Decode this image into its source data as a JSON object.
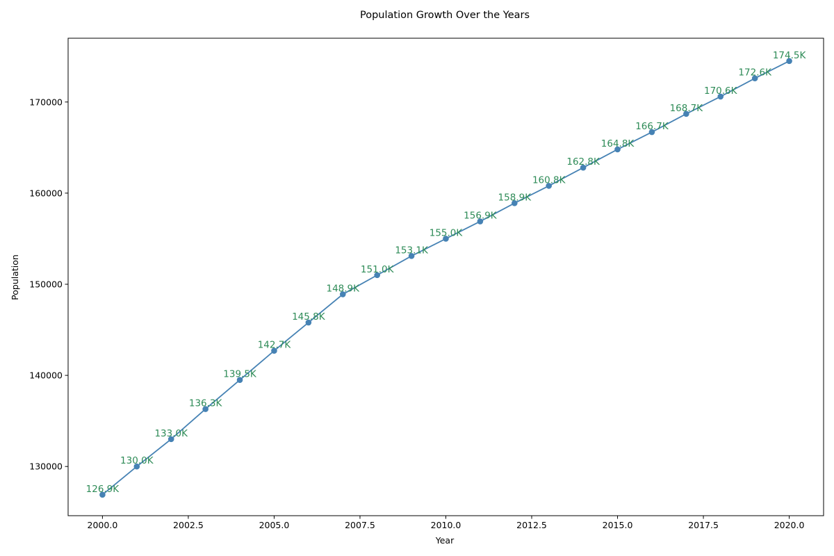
{
  "chart_data": {
    "type": "line",
    "title": "Population Growth Over the Years",
    "xlabel": "Year",
    "ylabel": "Population",
    "xlim": [
      1999.0,
      2021.0
    ],
    "ylim": [
      124600,
      177000
    ],
    "x_ticks": [
      2000.0,
      2002.5,
      2005.0,
      2007.5,
      2010.0,
      2012.5,
      2015.0,
      2017.5,
      2020.0
    ],
    "x_tick_labels": [
      "2000.0",
      "2002.5",
      "2005.0",
      "2007.5",
      "2010.0",
      "2012.5",
      "2015.0",
      "2017.5",
      "2020.0"
    ],
    "y_ticks": [
      130000,
      140000,
      150000,
      160000,
      170000
    ],
    "y_tick_labels": [
      "130000",
      "140000",
      "150000",
      "160000",
      "170000"
    ],
    "grid": false,
    "line_color": "#4682b4",
    "label_color": "#2e8b57",
    "series": [
      {
        "x": [
          2000,
          2001,
          2002,
          2003,
          2004,
          2005,
          2006,
          2007,
          2008,
          2009,
          2010,
          2011,
          2012,
          2013,
          2014,
          2015,
          2016,
          2017,
          2018,
          2019,
          2020
        ],
        "y": [
          126900,
          130000,
          133000,
          136300,
          139500,
          142700,
          145800,
          148900,
          151000,
          153100,
          155000,
          156900,
          158900,
          160800,
          162800,
          164800,
          166700,
          168700,
          170600,
          172600,
          174500
        ],
        "labels": [
          "126.9K",
          "130.0K",
          "133.0K",
          "136.3K",
          "139.5K",
          "142.7K",
          "145.8K",
          "148.9K",
          "151.0K",
          "153.1K",
          "155.0K",
          "156.9K",
          "158.9K",
          "160.8K",
          "162.8K",
          "164.8K",
          "166.7K",
          "168.7K",
          "170.6K",
          "172.6K",
          "174.5K"
        ]
      }
    ]
  }
}
